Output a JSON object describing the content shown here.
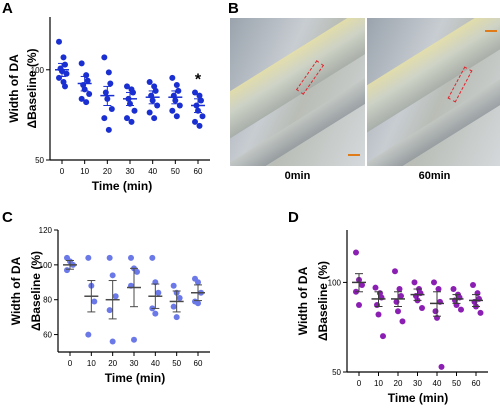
{
  "panels": {
    "A": "A",
    "B": "B",
    "C": "C",
    "D": "D"
  },
  "photos": {
    "left_caption": "0min",
    "right_caption": "60min"
  },
  "chart_data": [
    {
      "id": "A",
      "type": "scatter",
      "xlabel": "Time (min)",
      "ylabel_line1": "Width of DA",
      "ylabel_line2": "ΔBaseline (%)",
      "log_y": true,
      "ylim": [
        50,
        150
      ],
      "yticks": [
        50,
        100
      ],
      "xticks": [
        0,
        10,
        20,
        30,
        40,
        50,
        60
      ],
      "color": "#1a2fd1",
      "mean_color": "#1a2fd1",
      "annotation": {
        "text": "*",
        "x": 60
      },
      "groups": [
        {
          "x": 0,
          "mean": 100,
          "sem": 5,
          "points": [
            124,
            110,
            104,
            101,
            99,
            97,
            94,
            91,
            88
          ]
        },
        {
          "x": 10,
          "mean": 90,
          "sem": 5,
          "points": [
            105,
            96,
            92,
            89,
            86,
            83,
            80,
            78
          ]
        },
        {
          "x": 20,
          "mean": 82,
          "sem": 6,
          "points": [
            110,
            98,
            90,
            84,
            80,
            74,
            69,
            63
          ]
        },
        {
          "x": 30,
          "mean": 80,
          "sem": 4,
          "points": [
            88,
            86,
            84,
            80,
            77,
            73,
            69,
            67
          ]
        },
        {
          "x": 40,
          "mean": 81,
          "sem": 4,
          "points": [
            91,
            88,
            85,
            82,
            79,
            76,
            72,
            69
          ]
        },
        {
          "x": 50,
          "mean": 81,
          "sem": 4,
          "points": [
            94,
            89,
            85,
            82,
            79,
            76,
            73,
            70
          ]
        },
        {
          "x": 60,
          "mean": 76,
          "sem": 4,
          "points": [
            84,
            82,
            79,
            76,
            73,
            70,
            67,
            65
          ]
        }
      ]
    },
    {
      "id": "C",
      "type": "scatter",
      "xlabel": "Time (min)",
      "ylabel_line1": "Width of DA",
      "ylabel_line2": "ΔBaseline (%)",
      "log_y": false,
      "ylim": [
        50,
        120
      ],
      "yticks": [
        60,
        80,
        100,
        120
      ],
      "xticks": [
        0,
        10,
        20,
        30,
        40,
        50,
        60
      ],
      "color": "#6a78e8",
      "mean_color": "#4a4a4a",
      "groups": [
        {
          "x": 0,
          "mean": 100,
          "sem": 2.5,
          "points": [
            104,
            102,
            100,
            97
          ]
        },
        {
          "x": 10,
          "mean": 82,
          "sem": 9,
          "points": [
            104,
            88,
            79,
            60
          ]
        },
        {
          "x": 20,
          "mean": 80,
          "sem": 11,
          "points": [
            104,
            94,
            82,
            74,
            56
          ]
        },
        {
          "x": 30,
          "mean": 87,
          "sem": 11,
          "points": [
            104,
            98,
            96,
            88,
            57
          ]
        },
        {
          "x": 40,
          "mean": 82,
          "sem": 7,
          "points": [
            104,
            90,
            84,
            75,
            72
          ]
        },
        {
          "x": 50,
          "mean": 79,
          "sem": 6,
          "points": [
            88,
            84,
            81,
            76,
            70
          ]
        },
        {
          "x": 60,
          "mean": 84,
          "sem": 4.5,
          "points": [
            92,
            90,
            84,
            79,
            78
          ]
        }
      ]
    },
    {
      "id": "D",
      "type": "scatter",
      "xlabel": "Time (min)",
      "ylabel_line1": "Width of DA",
      "ylabel_line2": "ΔBaseline (%)",
      "log_y": true,
      "ylim": [
        50,
        150
      ],
      "yticks": [
        50,
        100
      ],
      "xticks": [
        0,
        10,
        20,
        30,
        40,
        50,
        60
      ],
      "color": "#8b1fb3",
      "mean_color": "#3a3a3a",
      "groups": [
        {
          "x": 0,
          "mean": 100,
          "sem": 7,
          "points": [
            126,
            102,
            98,
            93,
            84
          ]
        },
        {
          "x": 10,
          "mean": 88,
          "sem": 5,
          "points": [
            96,
            92,
            89,
            84,
            78,
            66
          ]
        },
        {
          "x": 20,
          "mean": 88,
          "sem": 5,
          "points": [
            109,
            95,
            90,
            86,
            80,
            74
          ]
        },
        {
          "x": 30,
          "mean": 91,
          "sem": 4,
          "points": [
            100,
            95,
            92,
            90,
            87,
            82
          ]
        },
        {
          "x": 40,
          "mean": 85,
          "sem": 8,
          "points": [
            100,
            95,
            86,
            80,
            76,
            52
          ]
        },
        {
          "x": 50,
          "mean": 88,
          "sem": 3,
          "points": [
            95,
            91,
            89,
            87,
            84,
            81
          ]
        },
        {
          "x": 60,
          "mean": 87,
          "sem": 4,
          "points": [
            98,
            92,
            88,
            86,
            83,
            79
          ]
        }
      ]
    }
  ]
}
